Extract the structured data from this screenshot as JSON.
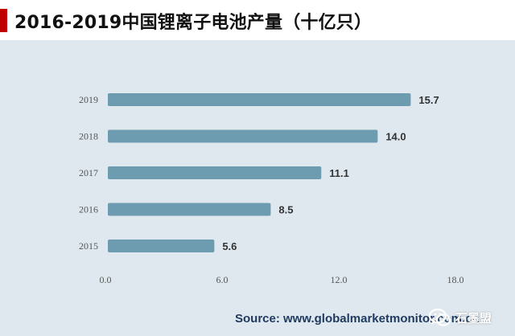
{
  "title": "2016-2019中国锂离子电池产量（十亿只）",
  "source_text": "Source: www.globalmarketmonitor.com.cn",
  "watermark_text": "石墨盟",
  "colors": {
    "bar": "#6d9cb0",
    "background": "#dfe8ee",
    "title_accent": "#c00000",
    "source_text": "#1f3a5f"
  },
  "chart_data": {
    "type": "bar",
    "orientation": "horizontal",
    "categories": [
      "2015",
      "2016",
      "2017",
      "2018",
      "2019"
    ],
    "values": [
      5.6,
      8.5,
      11.1,
      14.0,
      15.7
    ],
    "value_labels": [
      "5.6",
      "8.5",
      "11.1",
      "14.0",
      "15.7"
    ],
    "xlim": [
      0,
      18
    ],
    "xticks": [
      0,
      6,
      12,
      18
    ],
    "xtick_labels": [
      "0.0",
      "6.0",
      "12.0",
      "18.0"
    ],
    "grid": false,
    "legend": "none",
    "title": "2016-2019中国锂离子电池产量（十亿只）",
    "xlabel": "",
    "ylabel": ""
  }
}
